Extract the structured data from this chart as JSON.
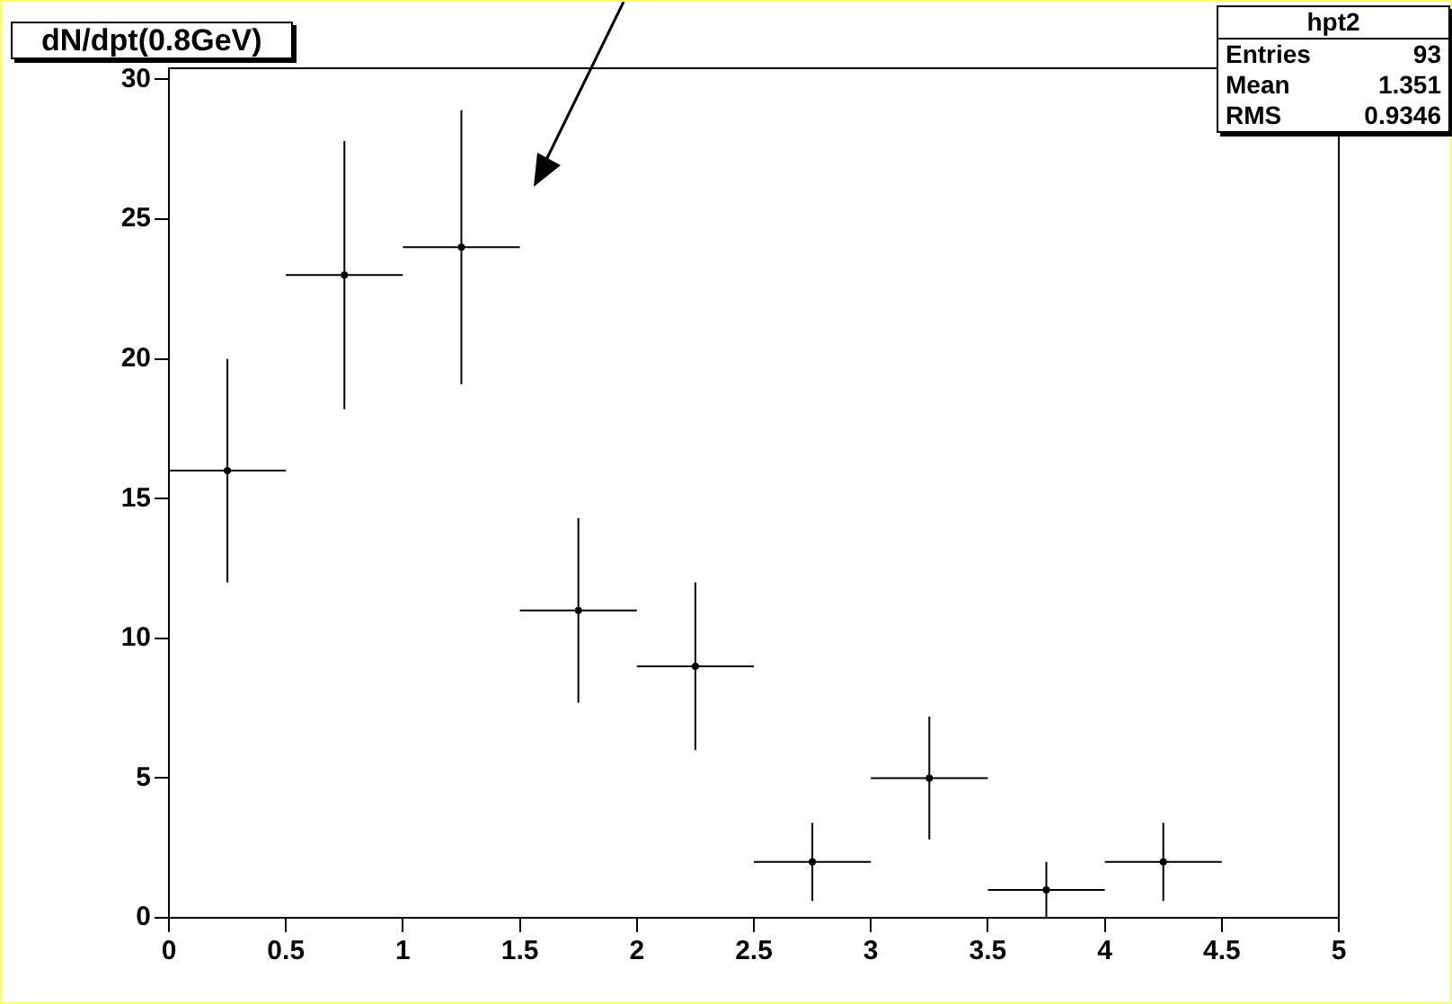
{
  "chart_data": {
    "type": "scatter",
    "title": "dN/dpt(0.8GeV)",
    "x": [
      0.25,
      0.75,
      1.25,
      1.75,
      2.25,
      2.75,
      3.25,
      3.75,
      4.25
    ],
    "values": [
      16,
      23,
      24,
      11,
      9,
      2,
      5,
      1,
      2
    ],
    "errors": [
      4,
      4.8,
      4.9,
      3.3,
      3,
      1.4,
      2.2,
      1,
      1.4
    ],
    "xerrors": [
      0.25,
      0.25,
      0.25,
      0.25,
      0.25,
      0.25,
      0.25,
      0.25,
      0.25
    ],
    "color": "#000000",
    "xlim": [
      0,
      5
    ],
    "xticks": [
      0,
      0.5,
      1,
      1.5,
      2,
      2.5,
      3,
      3.5,
      4,
      4.5,
      5
    ],
    "ylim": [
      0,
      30.4
    ],
    "yticks": [
      0,
      5,
      10,
      15,
      20,
      25,
      30
    ],
    "annotations": [
      "hpt2",
      "Entries",
      "93",
      "Mean",
      "1.351",
      "RMS",
      "0.9346"
    ]
  }
}
